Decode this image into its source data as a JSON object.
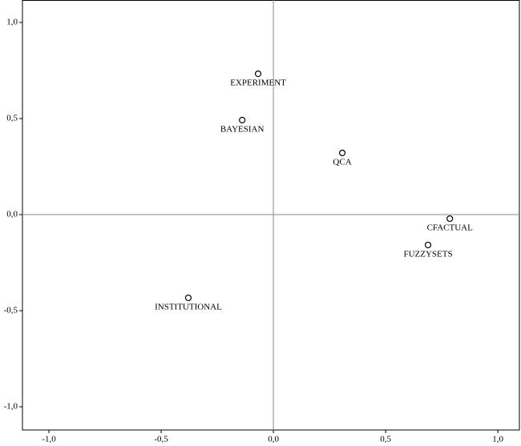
{
  "chart_data": {
    "type": "scatter",
    "x": [
      -0.068,
      -0.139,
      0.307,
      0.786,
      0.689,
      -0.379
    ],
    "values": [
      0.733,
      0.492,
      0.321,
      -0.021,
      -0.158,
      -0.433
    ],
    "point_labels": [
      "EXPERIMENT",
      "BAYESIAN",
      "QCA",
      "CFACTUAL",
      "FUZZYSETS",
      "INSTITUTIONAL"
    ],
    "xlim": [
      -1.118,
      1.096
    ],
    "ylim": [
      -1.121,
      1.117
    ],
    "xticks": [
      {
        "value": -1.0,
        "label": "-1,0"
      },
      {
        "value": -0.5,
        "label": "-0,5"
      },
      {
        "value": 0,
        "label": "0,0"
      },
      {
        "value": 0.5,
        "label": "0,5"
      },
      {
        "value": 1.0,
        "label": "1,0"
      }
    ],
    "yticks": [
      {
        "value": 1.0,
        "label": "1,0"
      },
      {
        "value": 0.5,
        "label": "0,5"
      },
      {
        "value": 0,
        "label": "0,0"
      },
      {
        "value": -0.5,
        "label": "-0,5"
      },
      {
        "value": -1.0,
        "label": "-1,0"
      }
    ],
    "reference_lines": true
  }
}
